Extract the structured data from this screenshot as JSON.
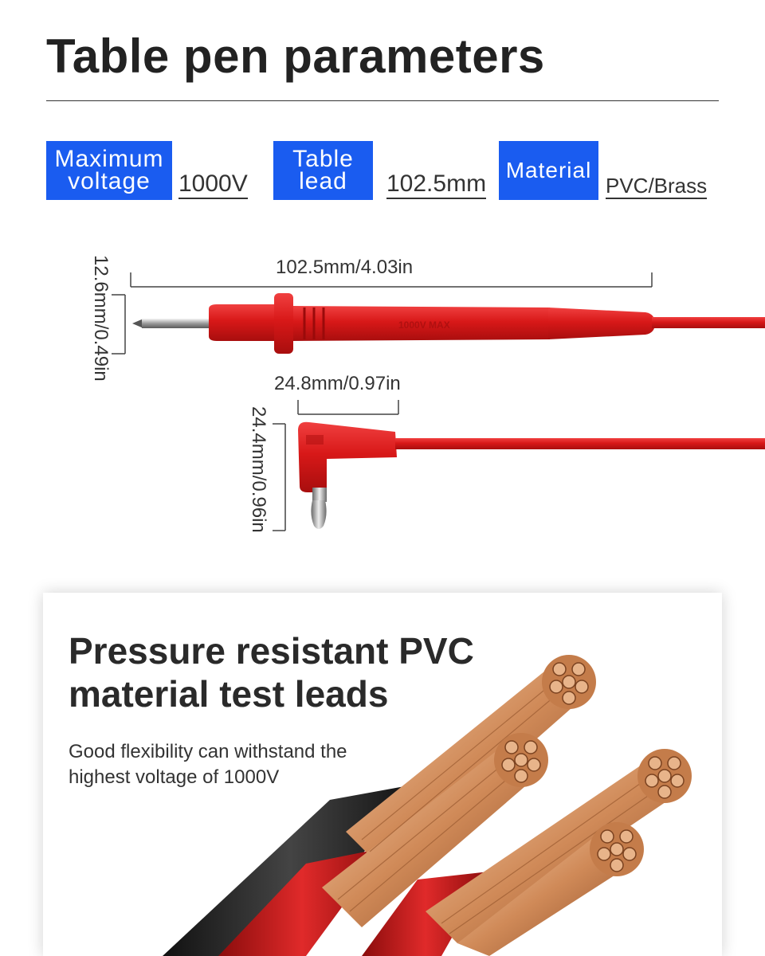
{
  "title": "Table pen parameters",
  "specs": [
    {
      "label": "Maximum voltage",
      "value": "1000V"
    },
    {
      "label": "Table lead",
      "value": "102.5mm"
    },
    {
      "label": "Material",
      "value": "PVC/Brass"
    }
  ],
  "dimensions": {
    "probe_length": "102.5mm/4.03in",
    "probe_diameter": "12.6mm/0.49in",
    "plug_width": "24.8mm/0.97in",
    "plug_height": "24.4mm/0.96in",
    "probe_marking": "1000V MAX"
  },
  "feature": {
    "heading_line1": "Pressure resistant PVC",
    "heading_line2": "material test leads",
    "body_line1": "Good flexibility can withstand the",
    "body_line2": "highest voltage of 1000V"
  },
  "colors": {
    "accent_blue": "#1a5cf0",
    "lead_red": "#e01e1e",
    "copper": "#d89a6a"
  }
}
